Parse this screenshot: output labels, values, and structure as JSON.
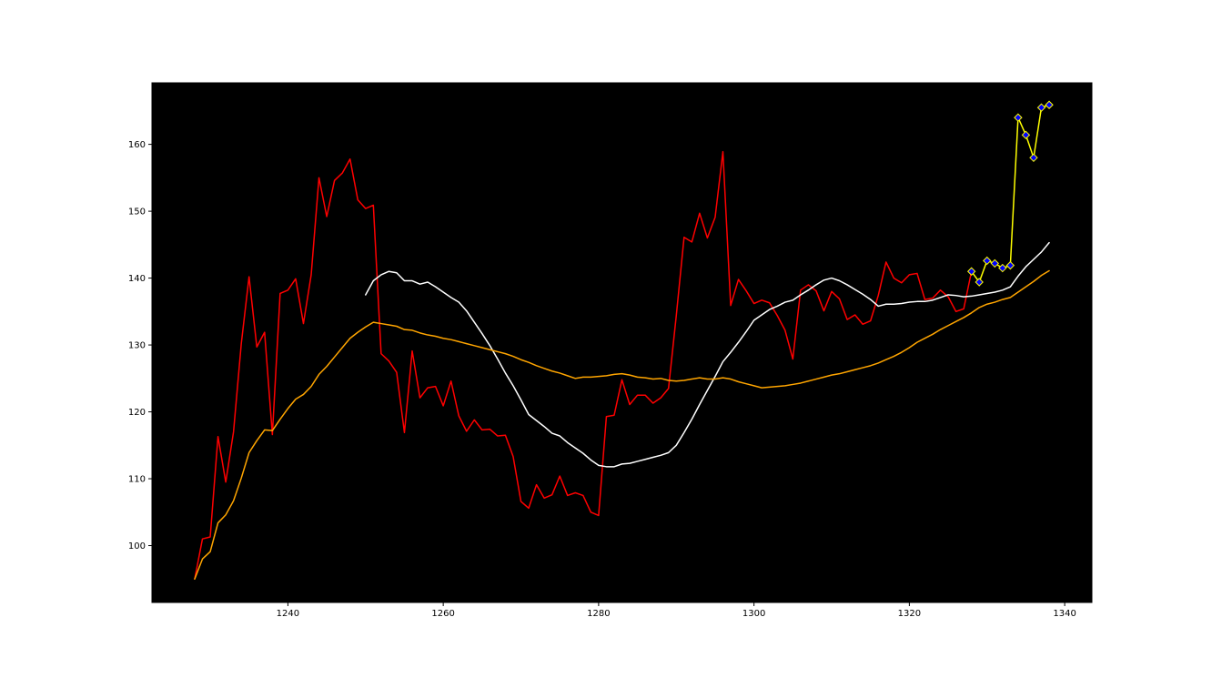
{
  "chart_data": {
    "type": "line",
    "xlim": [
      1222.5,
      1343.5
    ],
    "ylim": [
      91.5,
      169.2
    ],
    "x_ticks": [
      1240,
      1260,
      1280,
      1300,
      1320,
      1340
    ],
    "y_ticks": [
      100,
      110,
      120,
      130,
      140,
      150,
      160
    ],
    "grid": false,
    "legend": "none",
    "background_color": "#000000",
    "series": [
      {
        "color": "#ff0000",
        "x": [
          1228,
          1229,
          1230,
          1231,
          1232,
          1233,
          1234,
          1235,
          1236,
          1237,
          1238,
          1239,
          1240,
          1241,
          1242,
          1243,
          1244,
          1245,
          1246,
          1247,
          1248,
          1249,
          1250,
          1251,
          1252,
          1253,
          1254,
          1255,
          1256,
          1257,
          1258,
          1259,
          1260,
          1261,
          1262,
          1263,
          1264,
          1265,
          1266,
          1267,
          1268,
          1269,
          1270,
          1271,
          1272,
          1273,
          1274,
          1275,
          1276,
          1277,
          1278,
          1279,
          1280,
          1281,
          1282,
          1283,
          1284,
          1285,
          1286,
          1287,
          1288,
          1289,
          1290,
          1291,
          1292,
          1293,
          1294,
          1295,
          1296,
          1297,
          1298,
          1299,
          1300,
          1301,
          1302,
          1303,
          1304,
          1305,
          1306,
          1307,
          1308,
          1309,
          1310,
          1311,
          1312,
          1313,
          1314,
          1315,
          1316,
          1317,
          1318,
          1319,
          1320,
          1321,
          1322,
          1323,
          1324,
          1325,
          1326,
          1327,
          1328
        ],
        "y": [
          95,
          101,
          101.3,
          116.3,
          109.5,
          117,
          130.2,
          140.2,
          129.7,
          131.9,
          116.6,
          137.7,
          138.2,
          139.9,
          133.2,
          140.5,
          155,
          149.2,
          154.6,
          155.7,
          157.8,
          151.7,
          150.4,
          150.9,
          128.7,
          127.6,
          125.9,
          116.9,
          129.1,
          122.1,
          123.6,
          123.8,
          120.9,
          124.6,
          119.4,
          117.1,
          118.8,
          117.3,
          117.4,
          116.4,
          116.5,
          113.3,
          106.6,
          105.6,
          109.1,
          107.1,
          107.6,
          110.4,
          107.5,
          107.9,
          107.5,
          105,
          104.5,
          119.3,
          119.5,
          124.8,
          121.1,
          122.5,
          122.5,
          121.3,
          122.1,
          123.5,
          134.4,
          146.1,
          145.4,
          149.7,
          146,
          149.1,
          158.9,
          135.9,
          139.8,
          138.1,
          136.2,
          136.7,
          136.3,
          134.4,
          132.2,
          127.9,
          138.2,
          139,
          138.1,
          135.1,
          138,
          136.9,
          133.8,
          134.5,
          133.1,
          133.6,
          137.4,
          142.4,
          140,
          139.3,
          140.5,
          140.7,
          136.8,
          137,
          138.2,
          137.2,
          135,
          135.4,
          141
        ]
      },
      {
        "color": "#ffffff",
        "x": [
          1250,
          1251,
          1252,
          1253,
          1254,
          1255,
          1256,
          1257,
          1258,
          1259,
          1260,
          1261,
          1262,
          1263,
          1264,
          1265,
          1266,
          1267,
          1268,
          1269,
          1270,
          1271,
          1272,
          1273,
          1274,
          1275,
          1276,
          1277,
          1278,
          1279,
          1280,
          1281,
          1282,
          1283,
          1284,
          1285,
          1286,
          1287,
          1288,
          1289,
          1290,
          1291,
          1292,
          1293,
          1294,
          1295,
          1296,
          1297,
          1298,
          1299,
          1300,
          1301,
          1302,
          1303,
          1304,
          1305,
          1306,
          1307,
          1308,
          1309,
          1310,
          1311,
          1312,
          1313,
          1314,
          1315,
          1316,
          1317,
          1318,
          1319,
          1320,
          1321,
          1322,
          1323,
          1324,
          1325,
          1326,
          1327,
          1328,
          1329,
          1330,
          1331,
          1332,
          1333,
          1334,
          1335,
          1336,
          1337,
          1338
        ],
        "y": [
          137.5,
          139.6,
          140.5,
          141,
          140.8,
          139.6,
          139.6,
          139.1,
          139.4,
          138.7,
          137.9,
          137.1,
          136.4,
          135.1,
          133.4,
          131.7,
          129.9,
          127.9,
          125.8,
          123.9,
          121.8,
          119.6,
          118.7,
          117.8,
          116.8,
          116.4,
          115.4,
          114.6,
          113.8,
          112.8,
          112,
          111.8,
          111.8,
          112.2,
          112.3,
          112.6,
          112.9,
          113.2,
          113.5,
          113.9,
          115,
          116.9,
          118.9,
          121.1,
          123.2,
          125.3,
          127.5,
          128.9,
          130.4,
          132,
          133.7,
          134.5,
          135.3,
          135.8,
          136.4,
          136.7,
          137.5,
          138.2,
          139,
          139.7,
          140,
          139.6,
          139,
          138.3,
          137.6,
          136.8,
          135.8,
          136.1,
          136.1,
          136.2,
          136.4,
          136.5,
          136.5,
          136.7,
          137.1,
          137.5,
          137.4,
          137.2,
          137.3,
          137.5,
          137.7,
          137.9,
          138.2,
          138.7,
          140.3,
          141.7,
          142.8,
          143.9,
          145.3
        ]
      },
      {
        "color": "#ffa500",
        "x": [
          1228,
          1229,
          1230,
          1231,
          1232,
          1233,
          1234,
          1235,
          1236,
          1237,
          1238,
          1239,
          1240,
          1241,
          1242,
          1243,
          1244,
          1245,
          1246,
          1247,
          1248,
          1249,
          1250,
          1251,
          1252,
          1253,
          1254,
          1255,
          1256,
          1257,
          1258,
          1259,
          1260,
          1261,
          1262,
          1263,
          1264,
          1265,
          1266,
          1267,
          1268,
          1269,
          1270,
          1271,
          1272,
          1273,
          1274,
          1275,
          1276,
          1277,
          1278,
          1279,
          1280,
          1281,
          1282,
          1283,
          1284,
          1285,
          1286,
          1287,
          1288,
          1289,
          1290,
          1291,
          1292,
          1293,
          1294,
          1295,
          1296,
          1297,
          1298,
          1299,
          1300,
          1301,
          1302,
          1303,
          1304,
          1305,
          1306,
          1307,
          1308,
          1309,
          1310,
          1311,
          1312,
          1313,
          1314,
          1315,
          1316,
          1317,
          1318,
          1319,
          1320,
          1321,
          1322,
          1323,
          1324,
          1325,
          1326,
          1327,
          1328,
          1329,
          1330,
          1331,
          1332,
          1333,
          1334,
          1335,
          1336,
          1337,
          1338
        ],
        "y": [
          95,
          98,
          99.1,
          103.4,
          104.6,
          106.7,
          110.1,
          113.9,
          115.7,
          117.3,
          117.2,
          118.9,
          120.5,
          121.9,
          122.6,
          123.8,
          125.6,
          126.8,
          128.2,
          129.6,
          131,
          131.9,
          132.7,
          133.4,
          133.2,
          133,
          132.8,
          132.3,
          132.2,
          131.8,
          131.5,
          131.3,
          131,
          130.8,
          130.5,
          130.2,
          129.9,
          129.6,
          129.3,
          129,
          128.7,
          128.3,
          127.8,
          127.4,
          126.9,
          126.5,
          126.1,
          125.8,
          125.4,
          125,
          125.2,
          125.2,
          125.3,
          125.4,
          125.6,
          125.7,
          125.5,
          125.2,
          125.1,
          124.9,
          125,
          124.7,
          124.6,
          124.7,
          124.9,
          125.1,
          124.9,
          124.9,
          125.1,
          124.9,
          124.5,
          124.2,
          123.9,
          123.6,
          123.7,
          123.8,
          123.9,
          124.1,
          124.3,
          124.6,
          124.9,
          125.2,
          125.5,
          125.7,
          126,
          126.3,
          126.6,
          126.9,
          127.3,
          127.8,
          128.3,
          128.9,
          129.6,
          130.4,
          131,
          131.6,
          132.3,
          132.9,
          133.5,
          134.1,
          134.8,
          135.6,
          136.1,
          136.4,
          136.8,
          137.1,
          137.9,
          138.7,
          139.5,
          140.4,
          141.1
        ]
      },
      {
        "color": "#ffff00",
        "marker": "diamond",
        "marker_color": "#0000ff",
        "x": [
          1328,
          1329,
          1330,
          1331,
          1332,
          1333,
          1334,
          1335,
          1336,
          1337,
          1338
        ],
        "y": [
          141,
          139.4,
          142.6,
          142.2,
          141.5,
          141.9,
          164,
          161.4,
          158,
          165.5,
          165.9
        ]
      }
    ]
  }
}
